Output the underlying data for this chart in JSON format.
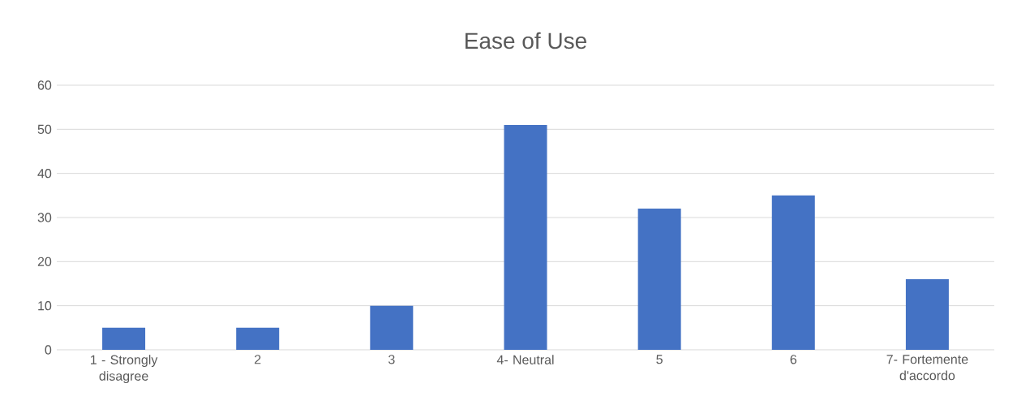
{
  "chart_data": {
    "type": "bar",
    "title": "Ease of Use",
    "categories": [
      "1 - Strongly disagree",
      "2",
      "3",
      "4- Neutral",
      "5",
      "6",
      "7- Fortemente d'accordo"
    ],
    "values": [
      5,
      5,
      10,
      51,
      32,
      35,
      16
    ],
    "color": "#4472c4",
    "ylim": [
      0,
      60
    ],
    "yticks": [
      0,
      10,
      20,
      30,
      40,
      50,
      60
    ],
    "grid": "y"
  }
}
